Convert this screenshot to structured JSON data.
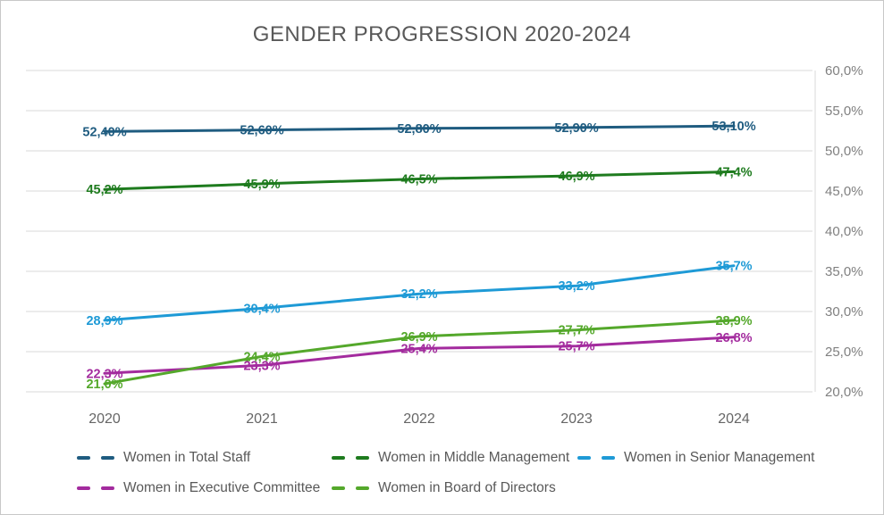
{
  "chart_data": {
    "type": "line",
    "title": "GENDER PROGRESSION 2020-2024",
    "categories": [
      "2020",
      "2021",
      "2022",
      "2023",
      "2024"
    ],
    "series": [
      {
        "name": "Women in Total Staff",
        "color": "#1F5C80",
        "values": [
          52.4,
          52.6,
          52.8,
          52.9,
          53.1
        ],
        "labels": [
          "52,40%",
          "52,60%",
          "52,80%",
          "52,90%",
          "53,10%"
        ]
      },
      {
        "name": "Women in Middle Management",
        "color": "#1E7B1E",
        "values": [
          45.2,
          45.9,
          46.5,
          46.9,
          47.4
        ],
        "labels": [
          "45,2%",
          "45,9%",
          "46,5%",
          "46,9%",
          "47,4%"
        ]
      },
      {
        "name": "Women in Senior Management",
        "color": "#1E9AD6",
        "values": [
          28.9,
          30.4,
          32.2,
          33.2,
          35.7
        ],
        "labels": [
          "28,9%",
          "30,4%",
          "32,2%",
          "33,2%",
          "35,7%"
        ]
      },
      {
        "name": "Women in Executive Committee",
        "color": "#A32B9E",
        "values": [
          22.3,
          23.3,
          25.4,
          25.7,
          26.8
        ],
        "labels": [
          "22,3%",
          "23,3%",
          "25,4%",
          "25,7%",
          "26,8%"
        ]
      },
      {
        "name": "Women in Board of Directors",
        "color": "#54A82B",
        "values": [
          21.0,
          24.4,
          26.9,
          27.7,
          28.9
        ],
        "labels": [
          "21,0%",
          "24,4%",
          "26,9%",
          "27,7%",
          "28,9%"
        ]
      }
    ],
    "y_axis": {
      "min": 20,
      "max": 60,
      "step": 5,
      "position": "right",
      "ticks": [
        {
          "value": 60,
          "label": "60,0%"
        },
        {
          "value": 55,
          "label": "55,0%"
        },
        {
          "value": 50,
          "label": "50,0%"
        },
        {
          "value": 45,
          "label": "45,0%"
        },
        {
          "value": 40,
          "label": "40,0%"
        },
        {
          "value": 35,
          "label": "35,0%"
        },
        {
          "value": 30,
          "label": "30,0%"
        },
        {
          "value": 25,
          "label": "25,0%"
        },
        {
          "value": 20,
          "label": "20,0%"
        }
      ]
    },
    "grid": true,
    "legend_position": "bottom",
    "data_label_position": "center"
  },
  "style": {
    "gridline_color": "#D9D9D9",
    "axis_line_color": "#D9D9D9",
    "tick_label_color": "#808080",
    "x_label_color": "#666666",
    "title_color": "#595959",
    "legend_text_color": "#595959"
  }
}
